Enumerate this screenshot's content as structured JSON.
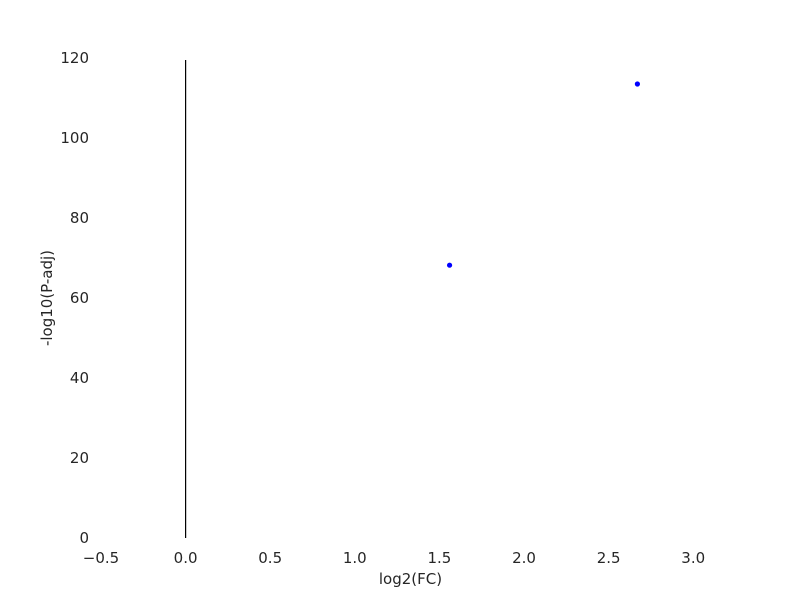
{
  "chart_data": {
    "type": "scatter",
    "title": "",
    "xlabel": "log2(FC)",
    "ylabel": "-log10(P-adj)",
    "xlim": [
      -0.5,
      3.3
    ],
    "ylim": [
      0,
      120
    ],
    "x_ticks": [
      -0.5,
      0.0,
      0.5,
      1.0,
      1.5,
      2.0,
      2.5,
      3.0
    ],
    "x_tick_labels": [
      "−0.5",
      "0.0",
      "0.5",
      "1.0",
      "1.5",
      "2.0",
      "2.5",
      "3.0"
    ],
    "y_ticks": [
      0,
      20,
      40,
      60,
      80,
      100,
      120
    ],
    "y_tick_labels": [
      "0",
      "20",
      "40",
      "60",
      "80",
      "100",
      "120"
    ],
    "grid": false,
    "reference_line": {
      "axis": "x",
      "value": 0.0,
      "color": "#000000"
    },
    "point_color": "#0000ff",
    "series": [
      {
        "x": [
          1.56,
          2.67
        ],
        "y": [
          68.2,
          113.5
        ]
      }
    ]
  }
}
